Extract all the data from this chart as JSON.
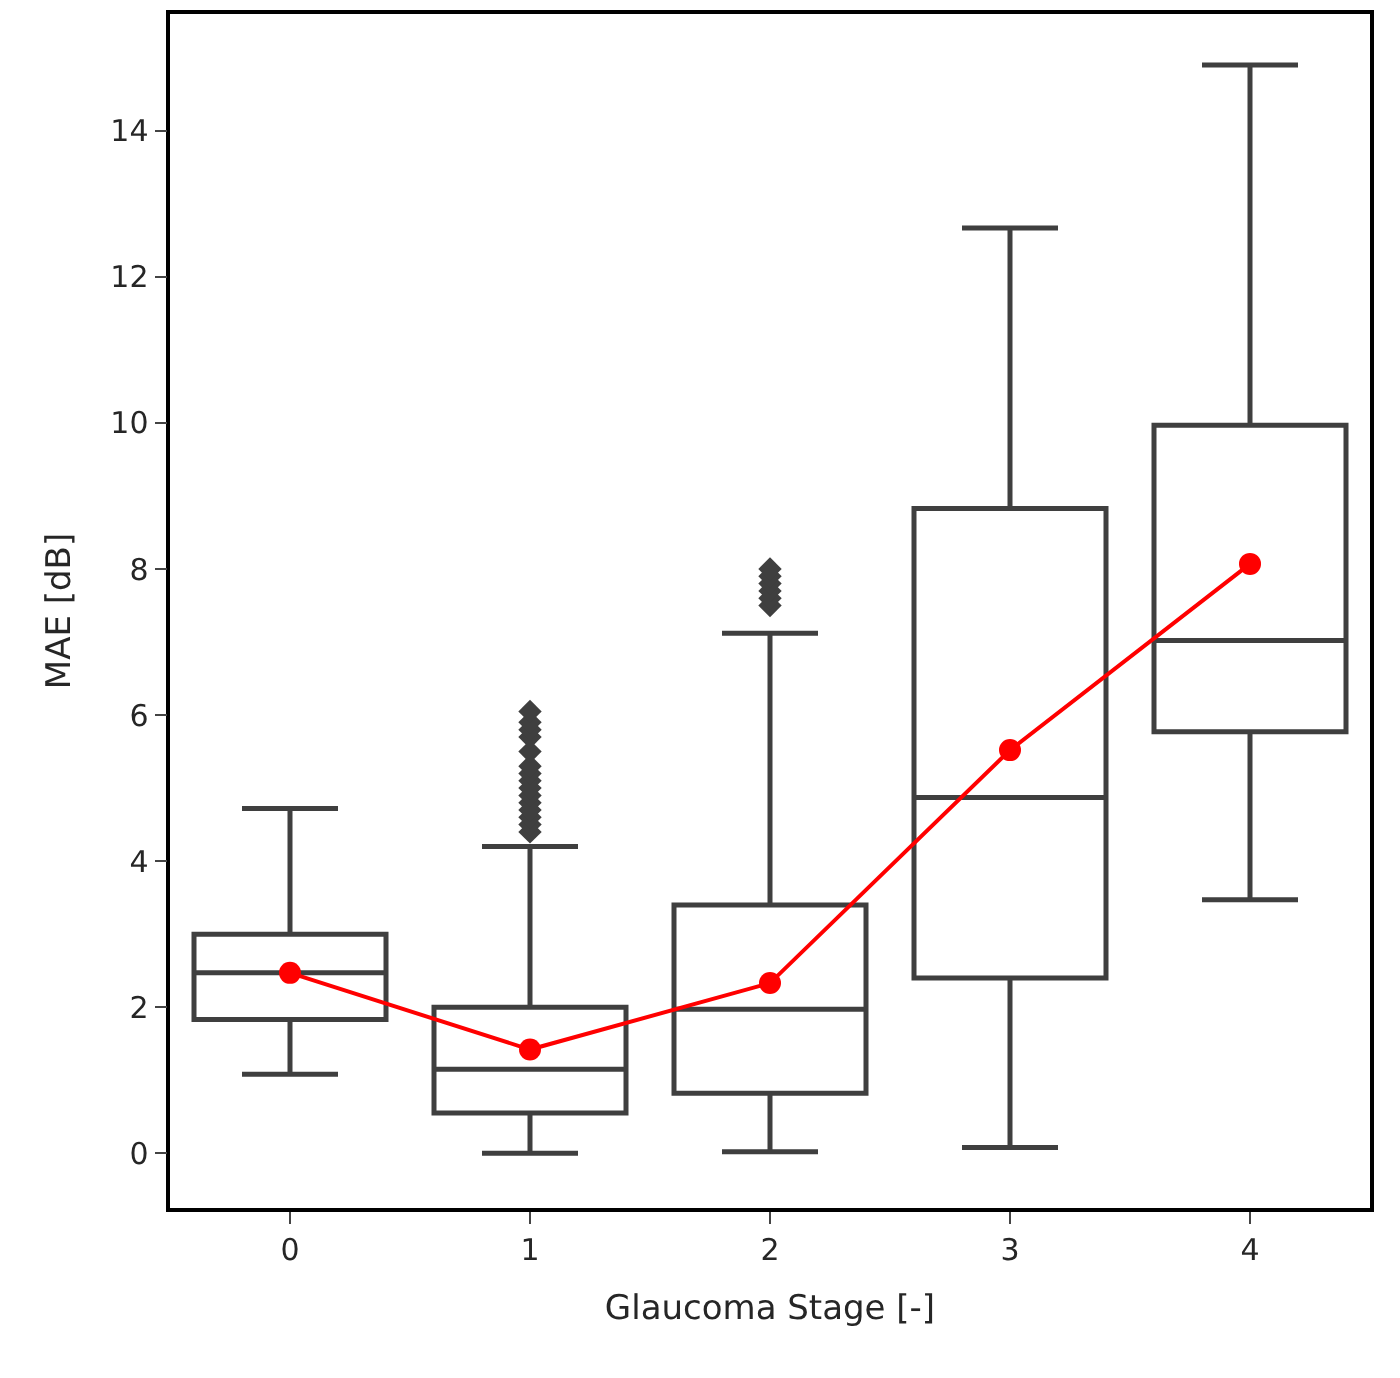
{
  "chart_data": {
    "type": "box",
    "xlabel": "Glaucoma Stage [-]",
    "ylabel": "MAE [dB]",
    "categories": [
      "0",
      "1",
      "2",
      "3",
      "4"
    ],
    "ylim": [
      -0.75,
      15.6
    ],
    "yticks": [
      0,
      2,
      4,
      6,
      8,
      10,
      12,
      14
    ],
    "marker": "circle",
    "series": [
      {
        "color": "#3f3f3f",
        "boxes": [
          {
            "low": 1.08,
            "q1": 1.83,
            "median": 2.47,
            "q3": 3.0,
            "high": 4.72
          },
          {
            "low": 0.0,
            "q1": 0.55,
            "median": 1.15,
            "q3": 2.0,
            "high": 4.2,
            "outliers": [
              4.4,
              4.5,
              4.6,
              4.7,
              4.8,
              4.9,
              5.0,
              5.1,
              5.2,
              5.3,
              5.5,
              5.7,
              5.8,
              5.9,
              6.05
            ]
          },
          {
            "low": 0.02,
            "q1": 0.82,
            "median": 1.97,
            "q3": 3.4,
            "high": 7.12,
            "outliers": [
              7.5,
              7.6,
              7.7,
              7.8,
              7.9,
              8.0
            ]
          },
          {
            "low": 0.08,
            "q1": 2.4,
            "median": 4.87,
            "q3": 8.83,
            "high": 12.67
          },
          {
            "low": 3.47,
            "q1": 5.77,
            "median": 7.02,
            "q3": 9.97,
            "high": 14.9
          }
        ]
      },
      {
        "type": "line",
        "color": "#ff0000",
        "values": [
          2.47,
          1.42,
          2.33,
          5.52,
          8.07
        ]
      }
    ]
  }
}
